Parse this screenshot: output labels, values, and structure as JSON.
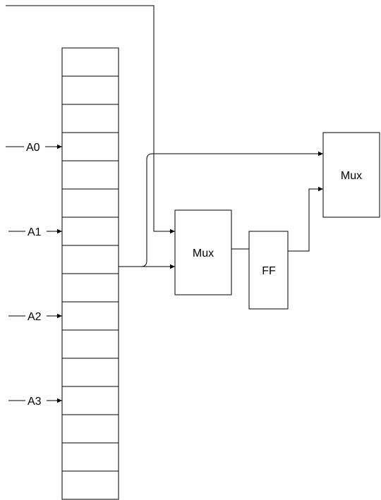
{
  "memory": {
    "cell_count": 16
  },
  "address_inputs": [
    {
      "label": "A0"
    },
    {
      "label": "A1"
    },
    {
      "label": "A2"
    },
    {
      "label": "A3"
    }
  ],
  "blocks": {
    "mux_lower": {
      "label": "Mux"
    },
    "flip_flop": {
      "label": "FF"
    },
    "mux_upper": {
      "label": "Mux"
    }
  },
  "colors": {
    "stroke": "#000000",
    "background": "#ffffff"
  }
}
